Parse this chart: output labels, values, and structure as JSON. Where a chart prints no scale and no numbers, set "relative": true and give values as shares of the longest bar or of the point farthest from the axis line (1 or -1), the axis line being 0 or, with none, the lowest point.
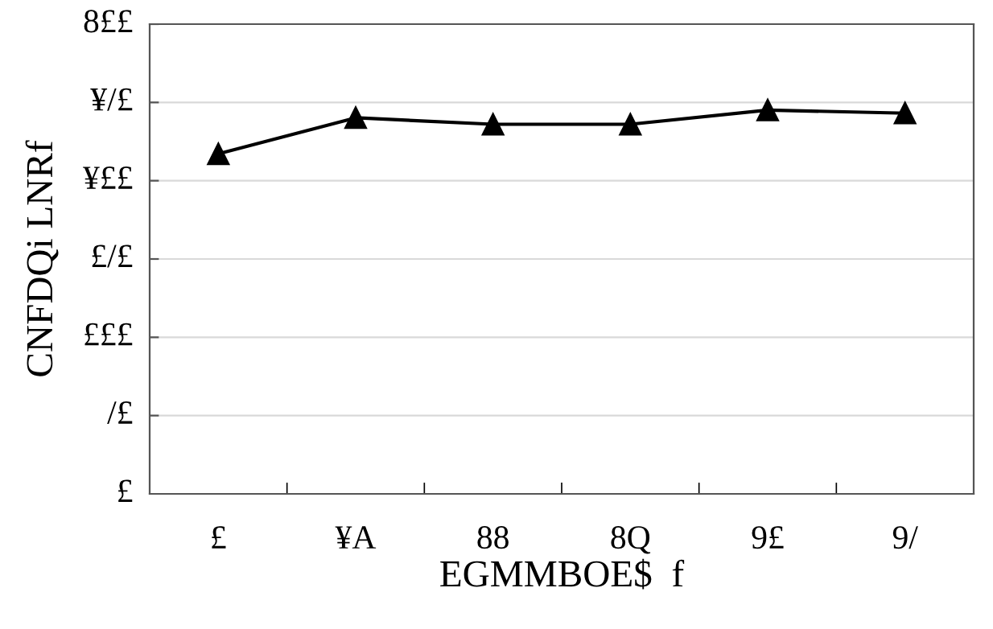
{
  "chart_data": {
    "type": "line",
    "relative": true,
    "xlabel": "EGMMBOE$  f",
    "ylabel": "CNFDQi LNRf",
    "categories": [
      "£",
      "¥A",
      "88",
      "8Q",
      "9£",
      "9/"
    ],
    "series": [
      {
        "color": "#000000",
        "values": [
          0.886,
          0.98,
          0.963,
          0.963,
          1,
          0.992
        ]
      }
    ],
    "annotations": [
      "£",
      "/£",
      "£££",
      "£/£",
      "¥££",
      "¥/£",
      "8££"
    ],
    "grid": "y",
    "marker": "triangle",
    "line_style": "solid"
  }
}
